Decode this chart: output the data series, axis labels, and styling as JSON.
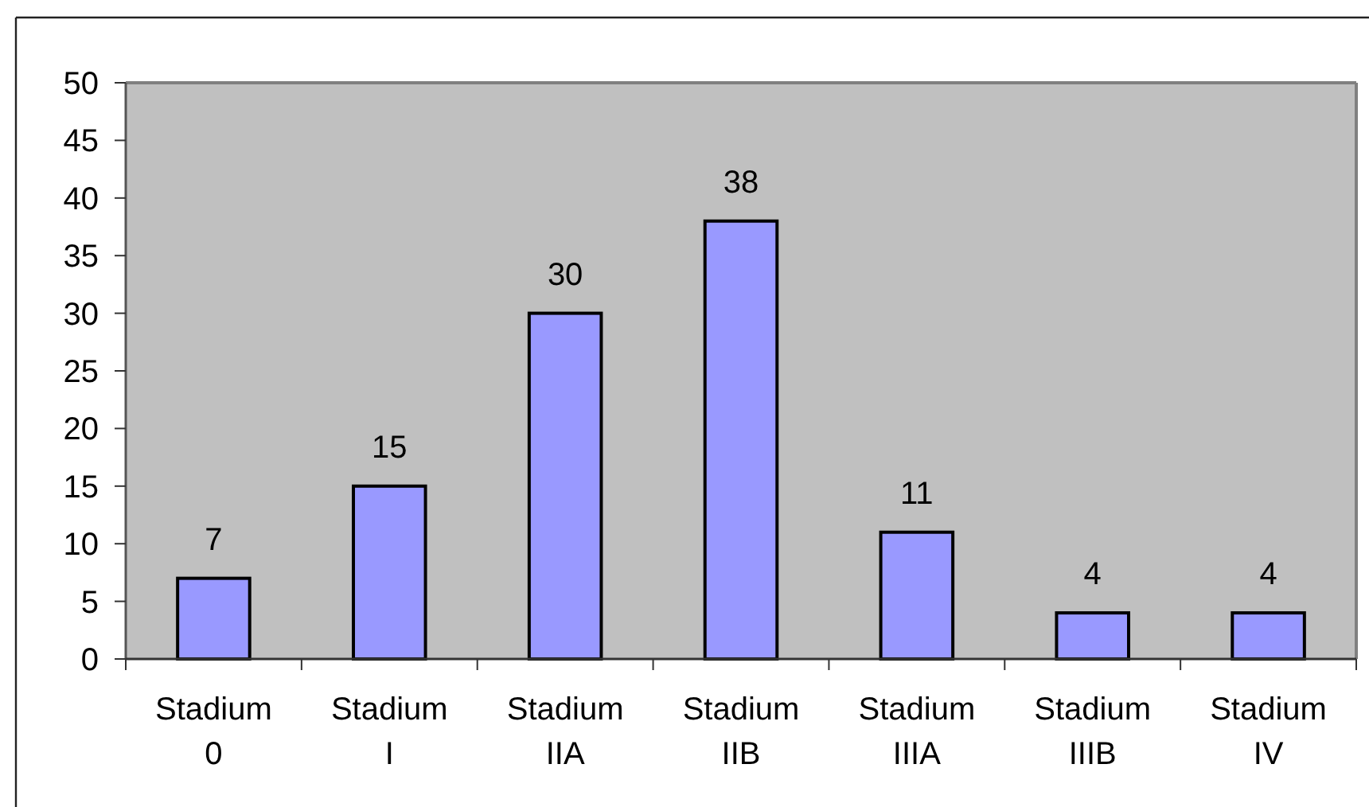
{
  "chart_data": {
    "type": "bar",
    "categories": [
      "Stadium 0",
      "Stadium I",
      "Stadium IIA",
      "Stadium IIB",
      "Stadium IIIA",
      "Stadium IIIB",
      "Stadium IV"
    ],
    "values": [
      7,
      15,
      30,
      38,
      11,
      4,
      4
    ],
    "color": "#9999ff",
    "ylim": [
      0,
      50
    ],
    "yticks": [
      0,
      5,
      10,
      15,
      20,
      25,
      30,
      35,
      40,
      45,
      50
    ],
    "data_labels": true
  }
}
